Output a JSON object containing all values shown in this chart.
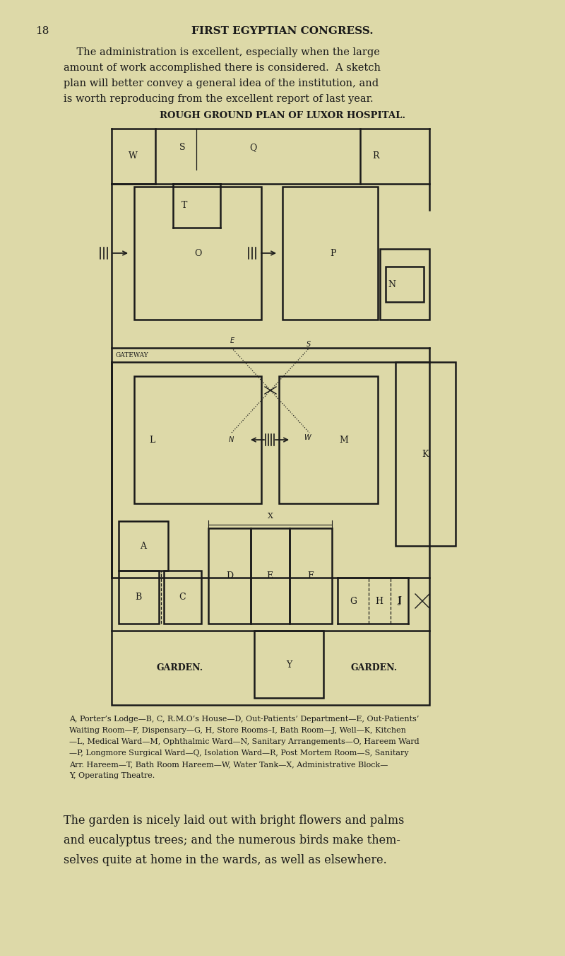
{
  "bg_color": "#e8e4c0",
  "page_bg": "#ddd9a8",
  "line_color": "#1a1a1a",
  "caption": "A, Porter’s Lodge—B, C, R.M.O’s House—D, Out-Patients’ Department—E, Out-Patients’\nWaiting Room—F, Dispensary—G, H, Store Rooms–I, Bath Room—J, Well—K, Kitchen\n—L, Medical Ward—M, Ophthalmic Ward—N, Sanitary Arrangements—O, Hareem Ward\n—P, Longmore Surgical Ward—Q, Isolation Ward—R, Post Mortem Room—S, Sanitary\nArr. Hareem—T, Bath Room Hareem—W, Water Tank—X, Administrative Block—\nY, Operating Theatre."
}
